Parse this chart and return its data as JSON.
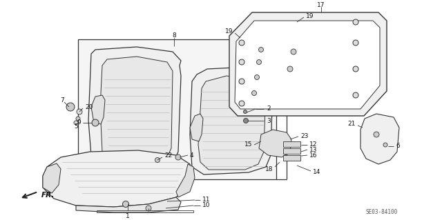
{
  "bg_color": "#ffffff",
  "diagram_code": "SE03-84100",
  "line_color": "#333333",
  "text_color": "#111111"
}
